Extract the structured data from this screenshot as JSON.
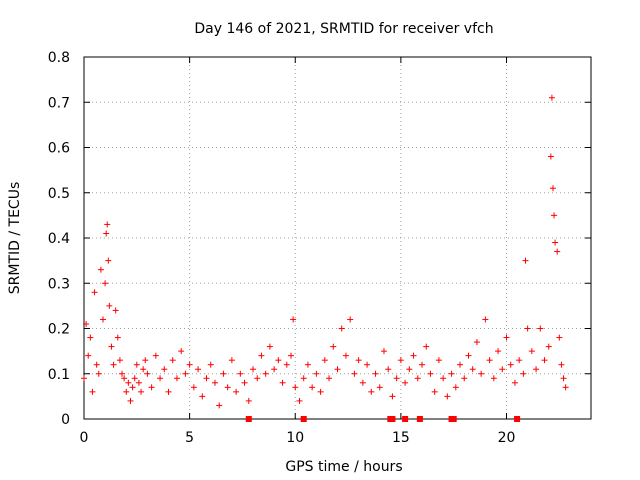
{
  "chart_data": {
    "type": "scatter",
    "title": "Day 146 of 2021, SRMTID for receiver vfch",
    "xlabel": "GPS time / hours",
    "ylabel": "SRMTID / TECUs",
    "xlim": [
      0,
      24
    ],
    "ylim": [
      0,
      0.8
    ],
    "grid": true,
    "marker": "+",
    "color": "#ff0000",
    "x_ticks": [
      0,
      5,
      10,
      15,
      20
    ],
    "x_tick_labels": [
      "0",
      "5",
      "10",
      "15",
      "20"
    ],
    "y_ticks": [
      0,
      0.1,
      0.2,
      0.3,
      0.4,
      0.5,
      0.6,
      0.7,
      0.8
    ],
    "y_tick_labels": [
      "0",
      "0.1",
      "0.2",
      "0.3",
      "0.4",
      "0.5",
      "0.6",
      "0.7",
      "0.8"
    ],
    "series": [
      {
        "name": "SRMTID",
        "points": [
          [
            0.0,
            0.09
          ],
          [
            0.1,
            0.21
          ],
          [
            0.2,
            0.14
          ],
          [
            0.3,
            0.18
          ],
          [
            0.4,
            0.06
          ],
          [
            0.5,
            0.28
          ],
          [
            0.6,
            0.12
          ],
          [
            0.7,
            0.1
          ],
          [
            0.8,
            0.33
          ],
          [
            0.9,
            0.22
          ],
          [
            1.0,
            0.3
          ],
          [
            1.05,
            0.41
          ],
          [
            1.1,
            0.43
          ],
          [
            1.15,
            0.35
          ],
          [
            1.2,
            0.25
          ],
          [
            1.3,
            0.16
          ],
          [
            1.4,
            0.12
          ],
          [
            1.5,
            0.24
          ],
          [
            1.6,
            0.18
          ],
          [
            1.7,
            0.13
          ],
          [
            1.8,
            0.1
          ],
          [
            1.9,
            0.09
          ],
          [
            2.0,
            0.06
          ],
          [
            2.1,
            0.08
          ],
          [
            2.2,
            0.04
          ],
          [
            2.3,
            0.07
          ],
          [
            2.4,
            0.09
          ],
          [
            2.5,
            0.12
          ],
          [
            2.6,
            0.08
          ],
          [
            2.7,
            0.06
          ],
          [
            2.8,
            0.11
          ],
          [
            2.9,
            0.13
          ],
          [
            3.0,
            0.1
          ],
          [
            3.2,
            0.07
          ],
          [
            3.4,
            0.14
          ],
          [
            3.6,
            0.09
          ],
          [
            3.8,
            0.11
          ],
          [
            4.0,
            0.06
          ],
          [
            4.2,
            0.13
          ],
          [
            4.4,
            0.09
          ],
          [
            4.6,
            0.15
          ],
          [
            4.8,
            0.1
          ],
          [
            5.0,
            0.12
          ],
          [
            5.2,
            0.07
          ],
          [
            5.4,
            0.11
          ],
          [
            5.6,
            0.05
          ],
          [
            5.8,
            0.09
          ],
          [
            6.0,
            0.12
          ],
          [
            6.2,
            0.08
          ],
          [
            6.4,
            0.03
          ],
          [
            6.6,
            0.1
          ],
          [
            6.8,
            0.07
          ],
          [
            7.0,
            0.13
          ],
          [
            7.2,
            0.06
          ],
          [
            7.4,
            0.1
          ],
          [
            7.6,
            0.08
          ],
          [
            7.8,
            0.04
          ],
          [
            8.0,
            0.11
          ],
          [
            8.2,
            0.09
          ],
          [
            8.4,
            0.14
          ],
          [
            8.6,
            0.1
          ],
          [
            8.8,
            0.16
          ],
          [
            9.0,
            0.11
          ],
          [
            9.2,
            0.13
          ],
          [
            9.4,
            0.08
          ],
          [
            9.6,
            0.12
          ],
          [
            9.8,
            0.14
          ],
          [
            9.9,
            0.22
          ],
          [
            10.0,
            0.07
          ],
          [
            10.2,
            0.04
          ],
          [
            10.4,
            0.09
          ],
          [
            10.6,
            0.12
          ],
          [
            10.8,
            0.07
          ],
          [
            11.0,
            0.1
          ],
          [
            11.2,
            0.06
          ],
          [
            11.4,
            0.13
          ],
          [
            11.6,
            0.09
          ],
          [
            11.8,
            0.16
          ],
          [
            12.0,
            0.11
          ],
          [
            12.2,
            0.2
          ],
          [
            12.4,
            0.14
          ],
          [
            12.6,
            0.22
          ],
          [
            12.8,
            0.1
          ],
          [
            13.0,
            0.13
          ],
          [
            13.2,
            0.08
          ],
          [
            13.4,
            0.12
          ],
          [
            13.6,
            0.06
          ],
          [
            13.8,
            0.1
          ],
          [
            14.0,
            0.07
          ],
          [
            14.2,
            0.15
          ],
          [
            14.4,
            0.11
          ],
          [
            14.6,
            0.05
          ],
          [
            14.8,
            0.09
          ],
          [
            15.0,
            0.13
          ],
          [
            15.2,
            0.08
          ],
          [
            15.4,
            0.11
          ],
          [
            15.6,
            0.14
          ],
          [
            15.8,
            0.09
          ],
          [
            16.0,
            0.12
          ],
          [
            16.2,
            0.16
          ],
          [
            16.4,
            0.1
          ],
          [
            16.6,
            0.06
          ],
          [
            16.8,
            0.13
          ],
          [
            17.0,
            0.09
          ],
          [
            17.2,
            0.05
          ],
          [
            17.4,
            0.1
          ],
          [
            17.6,
            0.07
          ],
          [
            17.8,
            0.12
          ],
          [
            18.0,
            0.09
          ],
          [
            18.2,
            0.14
          ],
          [
            18.4,
            0.11
          ],
          [
            18.6,
            0.17
          ],
          [
            18.8,
            0.1
          ],
          [
            19.0,
            0.22
          ],
          [
            19.2,
            0.13
          ],
          [
            19.4,
            0.09
          ],
          [
            19.6,
            0.15
          ],
          [
            19.8,
            0.11
          ],
          [
            20.0,
            0.18
          ],
          [
            20.2,
            0.12
          ],
          [
            20.4,
            0.08
          ],
          [
            20.6,
            0.13
          ],
          [
            20.8,
            0.1
          ],
          [
            20.9,
            0.35
          ],
          [
            21.0,
            0.2
          ],
          [
            21.2,
            0.15
          ],
          [
            21.4,
            0.11
          ],
          [
            21.6,
            0.2
          ],
          [
            21.8,
            0.13
          ],
          [
            22.0,
            0.16
          ],
          [
            22.1,
            0.58
          ],
          [
            22.15,
            0.71
          ],
          [
            22.2,
            0.51
          ],
          [
            22.25,
            0.45
          ],
          [
            22.3,
            0.39
          ],
          [
            22.4,
            0.37
          ],
          [
            22.5,
            0.18
          ],
          [
            22.6,
            0.12
          ],
          [
            22.7,
            0.09
          ],
          [
            22.8,
            0.07
          ]
        ]
      }
    ],
    "gap_markers_at_zero": [
      7.8,
      10.4,
      14.5,
      14.6,
      15.2,
      15.9,
      17.4,
      17.5,
      20.5
    ]
  }
}
